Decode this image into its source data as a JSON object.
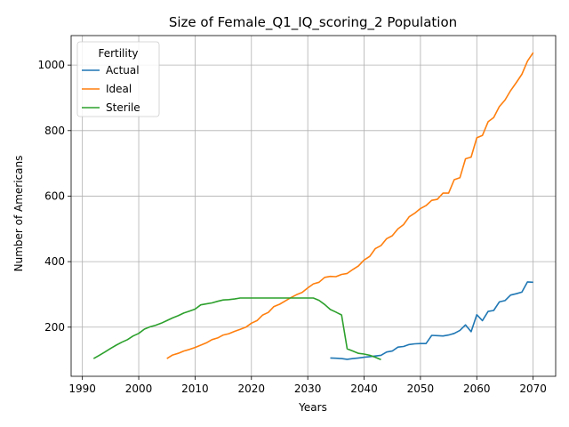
{
  "chart_data": {
    "type": "line",
    "title": "Size of Female_Q1_IQ_scoring_2 Population",
    "xlabel": "Years",
    "ylabel": "Number of Americans",
    "xlim": [
      1988,
      2074
    ],
    "ylim": [
      50,
      1090
    ],
    "xticks": [
      1990,
      2000,
      2010,
      2020,
      2030,
      2040,
      2050,
      2060,
      2070
    ],
    "yticks": [
      200,
      400,
      600,
      800,
      1000
    ],
    "grid": true,
    "legend": {
      "title": "Fertility",
      "placement": "upper-left"
    },
    "series": [
      {
        "name": "Actual",
        "color": "#1f77b4",
        "points": [
          [
            2034,
            106
          ],
          [
            2035,
            105
          ],
          [
            2036,
            104
          ],
          [
            2037,
            102
          ],
          [
            2038,
            104
          ],
          [
            2039,
            106
          ],
          [
            2040,
            108
          ],
          [
            2041,
            110
          ],
          [
            2042,
            112
          ],
          [
            2043,
            114
          ],
          [
            2044,
            124
          ],
          [
            2045,
            127
          ],
          [
            2046,
            139
          ],
          [
            2047,
            141
          ],
          [
            2048,
            147
          ],
          [
            2049,
            149
          ],
          [
            2050,
            150
          ],
          [
            2051,
            150
          ],
          [
            2052,
            175
          ],
          [
            2053,
            174
          ],
          [
            2054,
            173
          ],
          [
            2055,
            176
          ],
          [
            2056,
            181
          ],
          [
            2057,
            190
          ],
          [
            2058,
            207
          ],
          [
            2059,
            186
          ],
          [
            2060,
            238
          ],
          [
            2061,
            220
          ],
          [
            2062,
            248
          ],
          [
            2063,
            251
          ],
          [
            2064,
            277
          ],
          [
            2065,
            281
          ],
          [
            2066,
            298
          ],
          [
            2067,
            302
          ],
          [
            2068,
            307
          ],
          [
            2069,
            338
          ],
          [
            2070,
            337
          ]
        ]
      },
      {
        "name": "Ideal",
        "color": "#ff7f0e",
        "points": [
          [
            2005,
            104
          ],
          [
            2006,
            115
          ],
          [
            2007,
            120
          ],
          [
            2008,
            127
          ],
          [
            2009,
            132
          ],
          [
            2010,
            138
          ],
          [
            2011,
            145
          ],
          [
            2012,
            152
          ],
          [
            2013,
            162
          ],
          [
            2014,
            167
          ],
          [
            2015,
            176
          ],
          [
            2016,
            180
          ],
          [
            2017,
            187
          ],
          [
            2018,
            193
          ],
          [
            2019,
            200
          ],
          [
            2020,
            212
          ],
          [
            2021,
            220
          ],
          [
            2022,
            237
          ],
          [
            2023,
            245
          ],
          [
            2024,
            263
          ],
          [
            2025,
            270
          ],
          [
            2026,
            280
          ],
          [
            2027,
            290
          ],
          [
            2028,
            299
          ],
          [
            2029,
            306
          ],
          [
            2030,
            320
          ],
          [
            2031,
            332
          ],
          [
            2032,
            337
          ],
          [
            2033,
            352
          ],
          [
            2034,
            355
          ],
          [
            2035,
            354
          ],
          [
            2036,
            361
          ],
          [
            2037,
            364
          ],
          [
            2038,
            376
          ],
          [
            2039,
            387
          ],
          [
            2040,
            405
          ],
          [
            2041,
            416
          ],
          [
            2042,
            440
          ],
          [
            2043,
            449
          ],
          [
            2044,
            470
          ],
          [
            2045,
            479
          ],
          [
            2046,
            500
          ],
          [
            2047,
            513
          ],
          [
            2048,
            537
          ],
          [
            2049,
            548
          ],
          [
            2050,
            562
          ],
          [
            2051,
            571
          ],
          [
            2052,
            587
          ],
          [
            2053,
            590
          ],
          [
            2054,
            609
          ],
          [
            2055,
            609
          ],
          [
            2056,
            650
          ],
          [
            2057,
            656
          ],
          [
            2058,
            714
          ],
          [
            2059,
            719
          ],
          [
            2060,
            778
          ],
          [
            2061,
            785
          ],
          [
            2062,
            827
          ],
          [
            2063,
            840
          ],
          [
            2064,
            873
          ],
          [
            2065,
            893
          ],
          [
            2066,
            922
          ],
          [
            2067,
            946
          ],
          [
            2068,
            972
          ],
          [
            2069,
            1012
          ],
          [
            2070,
            1038
          ]
        ]
      },
      {
        "name": "Sterile",
        "color": "#2ca02c",
        "points": [
          [
            1992,
            104
          ],
          [
            1993,
            114
          ],
          [
            1994,
            124
          ],
          [
            1995,
            135
          ],
          [
            1996,
            145
          ],
          [
            1997,
            154
          ],
          [
            1998,
            162
          ],
          [
            1999,
            173
          ],
          [
            2000,
            181
          ],
          [
            2001,
            194
          ],
          [
            2002,
            201
          ],
          [
            2003,
            206
          ],
          [
            2004,
            212
          ],
          [
            2005,
            220
          ],
          [
            2006,
            228
          ],
          [
            2007,
            235
          ],
          [
            2008,
            243
          ],
          [
            2009,
            249
          ],
          [
            2010,
            255
          ],
          [
            2011,
            268
          ],
          [
            2012,
            271
          ],
          [
            2013,
            274
          ],
          [
            2014,
            279
          ],
          [
            2015,
            283
          ],
          [
            2016,
            284
          ],
          [
            2017,
            286
          ],
          [
            2018,
            289
          ],
          [
            2019,
            289
          ],
          [
            2020,
            289
          ],
          [
            2021,
            289
          ],
          [
            2022,
            289
          ],
          [
            2023,
            289
          ],
          [
            2024,
            289
          ],
          [
            2025,
            289
          ],
          [
            2026,
            289
          ],
          [
            2027,
            289
          ],
          [
            2028,
            289
          ],
          [
            2029,
            289
          ],
          [
            2030,
            289
          ],
          [
            2031,
            289
          ],
          [
            2032,
            282
          ],
          [
            2033,
            269
          ],
          [
            2034,
            254
          ],
          [
            2035,
            246
          ],
          [
            2036,
            237
          ],
          [
            2037,
            134
          ],
          [
            2038,
            127
          ],
          [
            2039,
            120
          ],
          [
            2040,
            118
          ],
          [
            2041,
            114
          ],
          [
            2042,
            108
          ],
          [
            2043,
            101
          ]
        ]
      }
    ]
  }
}
